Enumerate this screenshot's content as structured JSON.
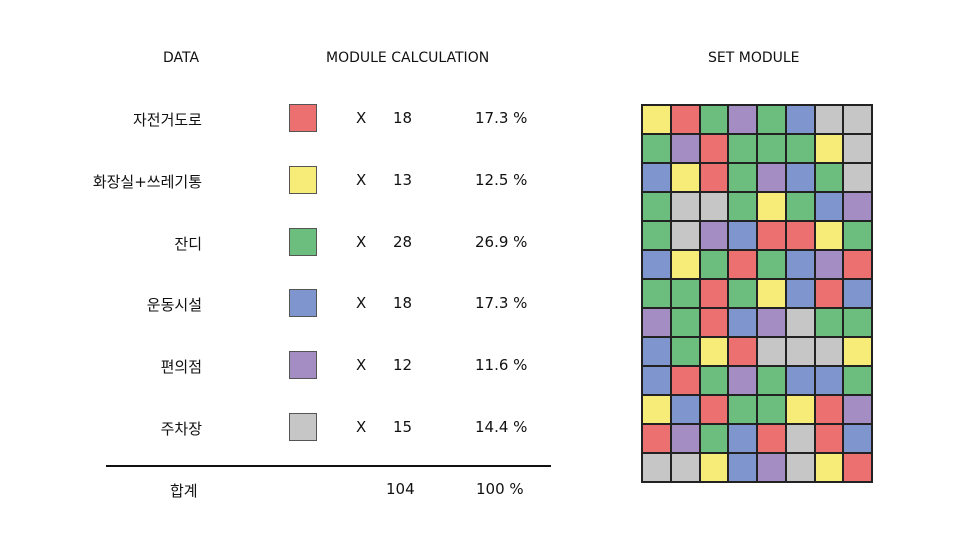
{
  "headers": {
    "data": "DATA",
    "calc": "MODULE CALCULATION",
    "set": "SET MODULE"
  },
  "colors": {
    "red": "#ec7070",
    "yellow": "#f6ec77",
    "green": "#6cbe7e",
    "blue": "#7f95cd",
    "purple": "#a38dc2",
    "gray": "#c6c6c6"
  },
  "rows": [
    {
      "label": "자전거도로",
      "color": "red",
      "x": "X",
      "count": "18",
      "percent": "17.3 %"
    },
    {
      "label": "화장실+쓰레기통",
      "color": "yellow",
      "x": "X",
      "count": "13",
      "percent": "12.5 %"
    },
    {
      "label": "잔디",
      "color": "green",
      "x": "X",
      "count": "28",
      "percent": "26.9 %"
    },
    {
      "label": "운동시설",
      "color": "blue",
      "x": "X",
      "count": "18",
      "percent": "17.3 %"
    },
    {
      "label": "편의점",
      "color": "purple",
      "x": "X",
      "count": "12",
      "percent": "11.6 %"
    },
    {
      "label": "주차장",
      "color": "gray",
      "x": "X",
      "count": "15",
      "percent": "14.4 %"
    }
  ],
  "total": {
    "label": "합계",
    "count": "104",
    "percent": "100 %"
  },
  "module_grid": [
    [
      "yellow",
      "red",
      "green",
      "purple",
      "green",
      "blue",
      "gray",
      "gray"
    ],
    [
      "green",
      "purple",
      "red",
      "green",
      "green",
      "green",
      "yellow",
      "gray"
    ],
    [
      "blue",
      "yellow",
      "red",
      "green",
      "purple",
      "blue",
      "green",
      "gray"
    ],
    [
      "green",
      "gray",
      "gray",
      "green",
      "yellow",
      "green",
      "blue",
      "purple"
    ],
    [
      "green",
      "gray",
      "purple",
      "blue",
      "red",
      "red",
      "yellow",
      "green"
    ],
    [
      "blue",
      "yellow",
      "green",
      "red",
      "green",
      "blue",
      "purple",
      "red"
    ],
    [
      "green",
      "green",
      "red",
      "green",
      "yellow",
      "blue",
      "red",
      "blue"
    ],
    [
      "purple",
      "green",
      "red",
      "blue",
      "purple",
      "gray",
      "green",
      "green"
    ],
    [
      "blue",
      "green",
      "yellow",
      "red",
      "gray",
      "gray",
      "gray",
      "yellow"
    ],
    [
      "blue",
      "red",
      "green",
      "purple",
      "green",
      "blue",
      "blue",
      "green"
    ],
    [
      "yellow",
      "blue",
      "red",
      "green",
      "green",
      "yellow",
      "red",
      "purple"
    ],
    [
      "red",
      "purple",
      "green",
      "blue",
      "red",
      "gray",
      "red",
      "blue"
    ],
    [
      "gray",
      "gray",
      "yellow",
      "blue",
      "purple",
      "gray",
      "yellow",
      "red"
    ]
  ]
}
